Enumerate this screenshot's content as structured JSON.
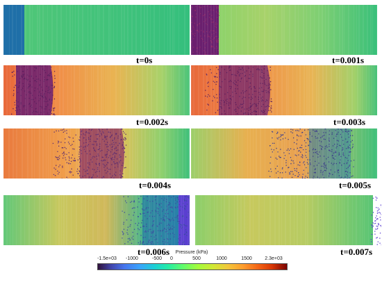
{
  "panels": [
    {
      "label": "t=0s"
    },
    {
      "label": "t=0.001s"
    },
    {
      "label": "t=0.002s"
    },
    {
      "label": "t=0.003s"
    },
    {
      "label": "t=0.004s"
    },
    {
      "label": "t=0.005s"
    },
    {
      "label": "t=0.006s"
    },
    {
      "label": "t=0.007s"
    }
  ],
  "colorbar": {
    "title": "Pressure (kPa)",
    "ticks": [
      "-1.5e+03",
      "-1000",
      "-500",
      "0",
      "500",
      "1000",
      "1500",
      "2.3e+03"
    ],
    "tick_values": [
      -1500,
      -1000,
      -500,
      0,
      500,
      1000,
      1500,
      2300
    ],
    "range": [
      -1500,
      2300
    ]
  },
  "colors": {
    "green": "#3fc07a",
    "orange": "#f0a050",
    "red_orange": "#e8683a",
    "blue": "#1f6fa8",
    "purple": "#6a1f6e",
    "violet": "#5a3fd0"
  }
}
